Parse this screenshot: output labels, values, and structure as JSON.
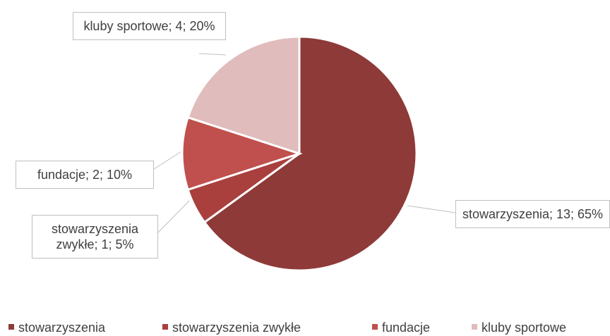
{
  "chart_data": {
    "type": "pie",
    "categories": [
      "stowarzyszenia",
      "stowarzyszenia zwykłe",
      "fundacje",
      "kluby sportowe"
    ],
    "values": [
      13,
      1,
      2,
      4
    ],
    "value_labels": [
      "stowarzyszenia; 13; 65%",
      "stowarzyszenia zwykłe; 1; 5%",
      "fundacje; 2; 10%",
      "kluby sportowe; 4; 20%"
    ],
    "colors": [
      "#8e3a38",
      "#a9403e",
      "#c0504d",
      "#e0bcbc"
    ],
    "legend": "bottom"
  }
}
